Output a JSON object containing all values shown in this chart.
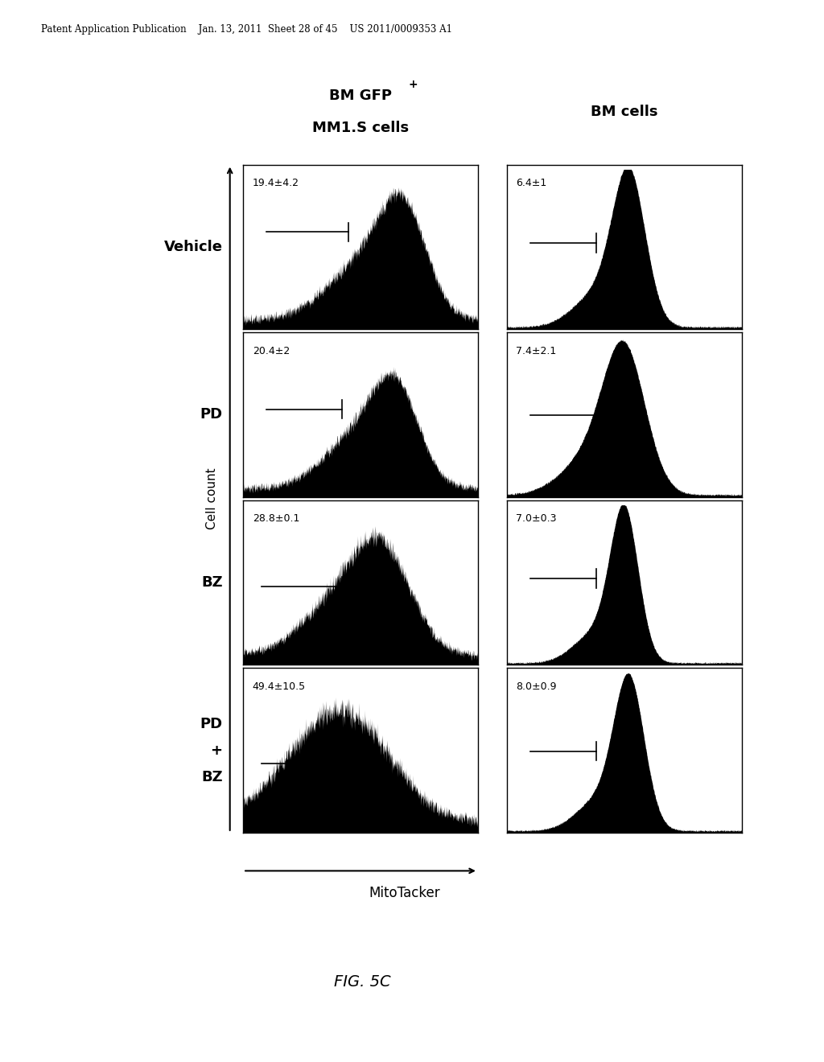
{
  "background_color": "#ffffff",
  "header_text": "Patent Application Publication    Jan. 13, 2011  Sheet 28 of 45    US 2011/0009353 A1",
  "col1_title_line1": "BM GFP",
  "col1_title_superscript": "+",
  "col1_title_line2": "MM1.S cells",
  "col2_title": "BM cells",
  "row_labels": [
    "Vehicle",
    "PD",
    "BZ",
    "PD\n+\nBZ"
  ],
  "annotations_col1": [
    "19.4±4.2",
    "20.4±2",
    "28.8±0.1",
    "49.4±10.5"
  ],
  "annotations_col2": [
    "6.4±1",
    "7.4±2.1",
    "7.0±0.3",
    "8.0±0.9"
  ],
  "xlabel": "MitoTacker",
  "ylabel": "Cell count",
  "fig_label": "FIG. 5C",
  "hist_color": "#000000"
}
